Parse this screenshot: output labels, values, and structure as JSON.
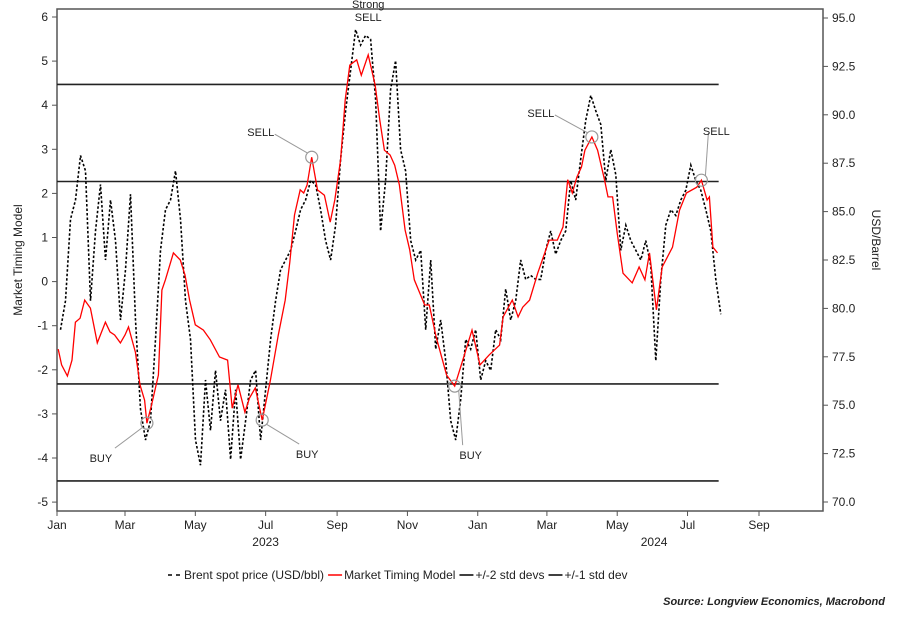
{
  "chart_data": {
    "type": "line",
    "x_origin": "2023-01-01",
    "x_unit": "days since origin",
    "x_range_days": [
      0,
      609
    ],
    "left_axis": {
      "label": "Market Timing Model",
      "ylim": [
        -5,
        6
      ],
      "ticks": [
        "6",
        "5",
        "4",
        "3",
        "2",
        "1",
        "0",
        "-1",
        "-2",
        "-3",
        "-4",
        "-5"
      ],
      "tick_values": [
        6,
        5,
        4,
        3,
        2,
        1,
        0,
        -1,
        -2,
        -3,
        -4,
        -5
      ]
    },
    "right_axis": {
      "label": "USD/Barrel",
      "ylim": [
        70,
        95
      ],
      "ticks": [
        "95.0",
        "92.5",
        "90.0",
        "87.5",
        "85.0",
        "82.5",
        "80.0",
        "77.5",
        "75.0",
        "72.5",
        "70.0"
      ],
      "tick_values": [
        95,
        92.5,
        90,
        87.5,
        85,
        82.5,
        80,
        77.5,
        75,
        72.5,
        70
      ]
    },
    "x_ticks": [
      {
        "label": "Jan",
        "day": 0
      },
      {
        "label": "Mar",
        "day": 59
      },
      {
        "label": "May",
        "day": 120
      },
      {
        "label": "Jul",
        "day": 181
      },
      {
        "label": "Sep",
        "day": 243
      },
      {
        "label": "Nov",
        "day": 304
      },
      {
        "label": "Jan",
        "day": 365
      },
      {
        "label": "Mar",
        "day": 425
      },
      {
        "label": "May",
        "day": 486
      },
      {
        "label": "Jul",
        "day": 547
      },
      {
        "label": "Sep",
        "day": 609
      }
    ],
    "year_labels": [
      {
        "label": "2023",
        "day": 181
      },
      {
        "label": "2024",
        "day": 518
      }
    ],
    "series": [
      {
        "name": "Brent spot price (USD/bbl)",
        "axis": "right",
        "style": "dashed",
        "color": "#000000",
        "x_start_day": 3,
        "x_step_days": 4.34,
        "values": [
          78.9,
          80.4,
          84.6,
          85.6,
          87.9,
          87.1,
          80.4,
          84.0,
          86.4,
          82.5,
          85.6,
          83.5,
          79.4,
          82.0,
          85.9,
          79.4,
          74.8,
          73.2,
          74.2,
          78.4,
          83.0,
          85.1,
          85.6,
          87.1,
          84.6,
          80.4,
          78.4,
          73.2,
          71.9,
          76.3,
          73.7,
          76.8,
          74.2,
          75.8,
          72.2,
          75.8,
          72.2,
          74.2,
          76.3,
          76.8,
          73.2,
          75.8,
          78.4,
          80.4,
          82.0,
          82.5,
          83.0,
          84.0,
          85.1,
          85.6,
          86.6,
          86.4,
          85.1,
          83.5,
          82.5,
          84.3,
          87.7,
          90.2,
          92.3,
          94.4,
          93.6,
          94.1,
          93.9,
          90.8,
          84.0,
          86.6,
          91.3,
          92.8,
          88.2,
          87.1,
          83.5,
          82.5,
          83.0,
          78.9,
          82.5,
          77.9,
          79.4,
          77.3,
          74.2,
          73.2,
          75.3,
          78.4,
          77.9,
          78.9,
          76.3,
          77.3,
          76.8,
          78.9,
          78.4,
          81.0,
          79.4,
          80.4,
          82.5,
          81.5,
          81.7,
          81.5,
          81.5,
          83.0,
          84.0,
          82.8,
          83.5,
          84.0,
          86.6,
          85.6,
          87.7,
          89.7,
          91.0,
          90.2,
          89.5,
          86.6,
          88.2,
          86.9,
          83.0,
          84.3,
          83.5,
          83.0,
          82.5,
          83.5,
          82.2,
          77.3,
          81.5,
          84.3,
          85.1,
          84.8,
          85.6,
          86.1,
          87.4,
          86.6,
          86.1,
          85.1,
          84.0,
          81.5,
          79.7
        ]
      },
      {
        "name": "Market Timing Model",
        "axis": "left",
        "style": "solid",
        "color": "#ff0000",
        "points": [
          [
            1,
            -1.53
          ],
          [
            4,
            -1.89
          ],
          [
            9,
            -2.14
          ],
          [
            13,
            -1.78
          ],
          [
            16,
            -0.92
          ],
          [
            20,
            -0.83
          ],
          [
            24,
            -0.42
          ],
          [
            29,
            -0.6
          ],
          [
            35,
            -1.39
          ],
          [
            42,
            -0.92
          ],
          [
            46,
            -1.14
          ],
          [
            50,
            -1.21
          ],
          [
            55,
            -1.39
          ],
          [
            59,
            -1.21
          ],
          [
            62,
            -1.03
          ],
          [
            68,
            -1.6
          ],
          [
            72,
            -2.34
          ],
          [
            76,
            -2.69
          ],
          [
            78,
            -3.21
          ],
          [
            82,
            -2.8
          ],
          [
            88,
            -2.12
          ],
          [
            91,
            -0.19
          ],
          [
            94,
            0.04
          ],
          [
            101,
            0.65
          ],
          [
            107,
            0.49
          ],
          [
            111,
            0.15
          ],
          [
            115,
            -0.42
          ],
          [
            120,
            -0.98
          ],
          [
            127,
            -1.1
          ],
          [
            133,
            -1.32
          ],
          [
            141,
            -1.71
          ],
          [
            148,
            -1.78
          ],
          [
            152,
            -2.87
          ],
          [
            157,
            -2.34
          ],
          [
            163,
            -2.96
          ],
          [
            167,
            -2.64
          ],
          [
            172,
            -2.41
          ],
          [
            178,
            -3.14
          ],
          [
            185,
            -2.25
          ],
          [
            192,
            -1.21
          ],
          [
            198,
            -0.42
          ],
          [
            202,
            0.44
          ],
          [
            206,
            1.51
          ],
          [
            211,
            2.08
          ],
          [
            214,
            2.01
          ],
          [
            217,
            2.19
          ],
          [
            221,
            2.82
          ],
          [
            226,
            2.08
          ],
          [
            232,
            1.96
          ],
          [
            237,
            1.35
          ],
          [
            241,
            1.85
          ],
          [
            246,
            2.76
          ],
          [
            250,
            4.12
          ],
          [
            254,
            4.91
          ],
          [
            260,
            5.03
          ],
          [
            264,
            4.68
          ],
          [
            270,
            5.14
          ],
          [
            276,
            4.46
          ],
          [
            280,
            3.66
          ],
          [
            284,
            2.98
          ],
          [
            289,
            2.87
          ],
          [
            293,
            2.64
          ],
          [
            297,
            2.19
          ],
          [
            302,
            1.17
          ],
          [
            306,
            0.72
          ],
          [
            310,
            0.04
          ],
          [
            319,
            -0.53
          ],
          [
            323,
            -0.53
          ],
          [
            329,
            -1.26
          ],
          [
            338,
            -2.12
          ],
          [
            345,
            -2.37
          ],
          [
            352,
            -1.78
          ],
          [
            360,
            -1.1
          ],
          [
            367,
            -1.89
          ],
          [
            375,
            -1.66
          ],
          [
            384,
            -1.44
          ],
          [
            387,
            -0.8
          ],
          [
            395,
            -0.42
          ],
          [
            400,
            -0.8
          ],
          [
            404,
            -0.58
          ],
          [
            410,
            -0.42
          ],
          [
            417,
            0.19
          ],
          [
            421,
            0.49
          ],
          [
            427,
            0.94
          ],
          [
            434,
            0.94
          ],
          [
            439,
            1.24
          ],
          [
            443,
            2.31
          ],
          [
            447,
            2.01
          ],
          [
            451,
            2.37
          ],
          [
            455,
            2.6
          ],
          [
            458,
            2.98
          ],
          [
            464,
            3.28
          ],
          [
            469,
            2.98
          ],
          [
            475,
            2.31
          ],
          [
            478,
            1.92
          ],
          [
            482,
            1.92
          ],
          [
            486,
            1.1
          ],
          [
            491,
            0.19
          ],
          [
            499,
            -0.03
          ],
          [
            505,
            0.33
          ],
          [
            510,
            0.04
          ],
          [
            514,
            0.65
          ],
          [
            520,
            -0.64
          ],
          [
            525,
            0.33
          ],
          [
            534,
            0.78
          ],
          [
            540,
            1.62
          ],
          [
            546,
            2.01
          ],
          [
            555,
            2.14
          ],
          [
            559,
            2.3
          ],
          [
            564,
            1.85
          ],
          [
            566,
            1.92
          ],
          [
            569,
            0.78
          ],
          [
            573,
            0.65
          ]
        ]
      },
      {
        "name": "+/-2 std devs",
        "axis": "left",
        "style": "solid",
        "color": "#000000",
        "levels": [
          4.47,
          -4.52
        ],
        "x_end_day": 574
      },
      {
        "name": "+/-1 std dev",
        "axis": "left",
        "style": "solid",
        "color": "#000000",
        "levels": [
          2.27,
          -2.32
        ],
        "x_end_day": 574
      }
    ],
    "annotations": [
      {
        "text": [
          "Strong",
          "SELL"
        ],
        "day": 270,
        "value": 5.14,
        "circle": false
      },
      {
        "text": [
          "SELL"
        ],
        "day": 221,
        "value": 2.82,
        "circle": true
      },
      {
        "text": [
          "BUY"
        ],
        "day": 78,
        "value": -3.21,
        "circle": true
      },
      {
        "text": [
          "BUY"
        ],
        "day": 178,
        "value": -3.14,
        "circle": true
      },
      {
        "text": [
          "BUY"
        ],
        "day": 345,
        "value": -2.37,
        "circle": true
      },
      {
        "text": [
          "SELL"
        ],
        "day": 464,
        "value": 3.28,
        "circle": true
      },
      {
        "text": [
          "SELL"
        ],
        "day": 559,
        "value": 2.3,
        "circle": true
      }
    ],
    "legend": {
      "placement": "bottom",
      "items": [
        "Brent spot price (USD/bbl)",
        "Market Timing Model",
        "+/-2 std devs",
        "+/-1 std dev"
      ]
    },
    "source": "Source: Longview Economics, Macrobond"
  }
}
